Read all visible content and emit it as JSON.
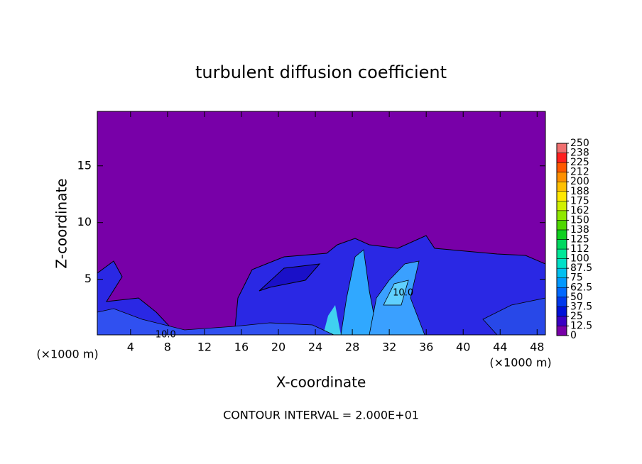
{
  "chart_data": {
    "type": "contour",
    "title": "turbulent diffusion coefficient",
    "x_label": "X-coordinate",
    "y_label": "Z-coordinate",
    "x_unit": "(×1000 m)",
    "y_unit": "(×1000 m)",
    "footer": "CONTOUR INTERVAL = 2.000E+01",
    "xlim": [
      0.4,
      48.9
    ],
    "ylim": [
      0.1,
      19.8
    ],
    "xticks": [
      4,
      8,
      12,
      16,
      20,
      24,
      28,
      32,
      36,
      40,
      44,
      48
    ],
    "yticks": [
      5,
      10,
      15
    ],
    "contour_labels": [
      {
        "label": "10.0",
        "x": 7.8,
        "y": 0.1
      },
      {
        "label": "10.0",
        "x": 33.5,
        "y": 3.8
      }
    ],
    "colorbar": {
      "levels": [
        0,
        12.5,
        25,
        37.5,
        50,
        62.5,
        75,
        87.5,
        100,
        112.5,
        125,
        137.5,
        150,
        162.5,
        175,
        187.5,
        200,
        212.5,
        225,
        237.5,
        250
      ],
      "colors": [
        "#7800a8",
        "#3a00c4",
        "#0010d8",
        "#0038ec",
        "#0068ff",
        "#0098ff",
        "#00c0f0",
        "#00e0c8",
        "#00e898",
        "#00d860",
        "#10d020",
        "#50d800",
        "#90e800",
        "#d0f000",
        "#ffe800",
        "#ffc000",
        "#ff9000",
        "#ff5800",
        "#ff2020",
        "#f07070"
      ],
      "ticks": [
        0,
        12.5,
        25,
        37.5,
        50,
        62.5,
        75,
        87.5,
        100,
        {
          "value": 112.5,
          "label": "112"
        },
        125,
        {
          "value": 137.5,
          "label": "138"
        },
        150,
        {
          "value": 162.5,
          "label": "162"
        },
        175,
        {
          "value": 187.5,
          "label": "188"
        },
        200,
        {
          "value": 212.5,
          "label": "212"
        },
        225,
        {
          "value": 237.5,
          "label": "238"
        },
        250
      ]
    }
  }
}
